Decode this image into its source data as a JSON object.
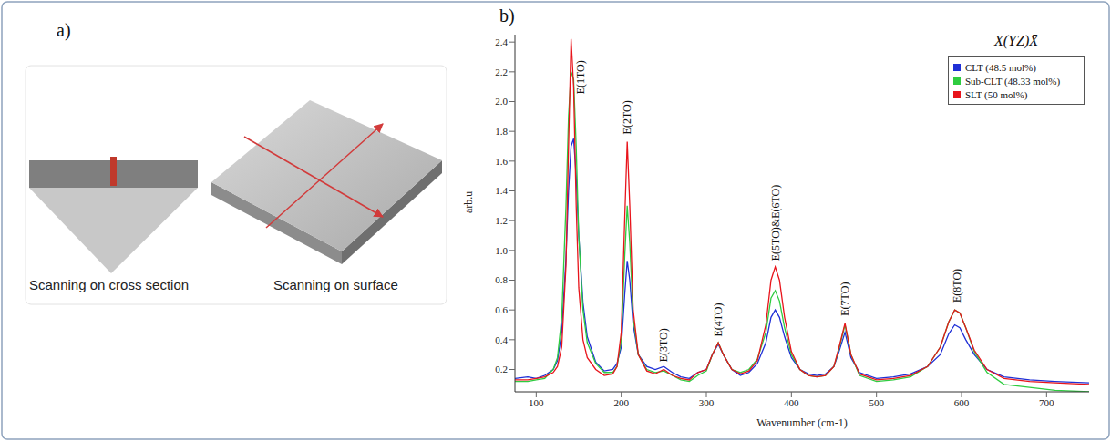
{
  "panel_a": {
    "label": "a)",
    "captions": [
      "Scanning on cross section",
      "Scanning on surface"
    ]
  },
  "panel_b": {
    "label": "b)"
  },
  "chart_data": {
    "type": "line",
    "title": "X(YZ)X̄",
    "x_label": "Wavenumber (cm-1)",
    "y_label": "arb.u",
    "xlim": [
      75,
      750
    ],
    "xticks": [
      100,
      200,
      300,
      400,
      500,
      600,
      700
    ],
    "ylim": [
      0.05,
      2.45
    ],
    "yticks": [
      0.2,
      0.4,
      0.6,
      0.8,
      {
        "value": 1,
        "label": "1.0"
      },
      1.2,
      1.4,
      1.6,
      1.8,
      {
        "value": 2,
        "label": "2.0"
      },
      2.2,
      2.4
    ],
    "grid": false,
    "legend": "top-right",
    "x": [
      75,
      90,
      100,
      110,
      120,
      125,
      130,
      135,
      138,
      141,
      144,
      147,
      150,
      155,
      160,
      170,
      180,
      190,
      195,
      200,
      204,
      207,
      210,
      214,
      220,
      230,
      240,
      250,
      260,
      270,
      280,
      290,
      300,
      307,
      314,
      320,
      330,
      340,
      350,
      360,
      370,
      376,
      381,
      386,
      392,
      400,
      410,
      420,
      430,
      440,
      450,
      456,
      463,
      470,
      480,
      500,
      520,
      540,
      560,
      575,
      585,
      592,
      598,
      605,
      615,
      630,
      650,
      680,
      710,
      750
    ],
    "series": [
      {
        "name": "CLT (48.5 mol%)",
        "color": "#1f2fd6",
        "values": [
          0.14,
          0.15,
          0.14,
          0.16,
          0.2,
          0.26,
          0.45,
          0.95,
          1.4,
          1.7,
          1.75,
          1.5,
          1.1,
          0.65,
          0.42,
          0.25,
          0.19,
          0.2,
          0.24,
          0.35,
          0.7,
          0.93,
          0.8,
          0.5,
          0.3,
          0.22,
          0.2,
          0.22,
          0.18,
          0.15,
          0.14,
          0.18,
          0.2,
          0.3,
          0.37,
          0.3,
          0.2,
          0.16,
          0.18,
          0.24,
          0.38,
          0.55,
          0.6,
          0.55,
          0.42,
          0.28,
          0.2,
          0.17,
          0.16,
          0.17,
          0.22,
          0.32,
          0.45,
          0.28,
          0.18,
          0.14,
          0.15,
          0.17,
          0.22,
          0.3,
          0.44,
          0.5,
          0.48,
          0.4,
          0.3,
          0.2,
          0.15,
          0.13,
          0.12,
          0.11
        ]
      },
      {
        "name": "Sub-CLT (48.33 mol%)",
        "color": "#2ecc40",
        "values": [
          0.12,
          0.12,
          0.13,
          0.14,
          0.2,
          0.28,
          0.55,
          1.3,
          1.9,
          2.2,
          2.15,
          1.7,
          1.1,
          0.6,
          0.38,
          0.24,
          0.18,
          0.18,
          0.22,
          0.4,
          0.95,
          1.3,
          1.05,
          0.55,
          0.3,
          0.2,
          0.18,
          0.19,
          0.16,
          0.13,
          0.12,
          0.16,
          0.19,
          0.3,
          0.38,
          0.3,
          0.2,
          0.18,
          0.2,
          0.27,
          0.45,
          0.68,
          0.73,
          0.66,
          0.48,
          0.3,
          0.2,
          0.16,
          0.15,
          0.16,
          0.22,
          0.34,
          0.5,
          0.3,
          0.16,
          0.12,
          0.13,
          0.15,
          0.22,
          0.35,
          0.52,
          0.6,
          0.58,
          0.48,
          0.32,
          0.18,
          0.1,
          0.08,
          0.06,
          0.05
        ]
      },
      {
        "name": "SLT (50 mol%)",
        "color": "#e8141b",
        "values": [
          0.13,
          0.13,
          0.14,
          0.15,
          0.18,
          0.22,
          0.35,
          0.9,
          1.7,
          2.42,
          2.1,
          1.3,
          0.75,
          0.4,
          0.28,
          0.2,
          0.16,
          0.17,
          0.22,
          0.45,
          1.2,
          1.73,
          1.3,
          0.6,
          0.3,
          0.19,
          0.17,
          0.2,
          0.16,
          0.14,
          0.13,
          0.18,
          0.2,
          0.3,
          0.38,
          0.3,
          0.2,
          0.17,
          0.19,
          0.26,
          0.5,
          0.8,
          0.89,
          0.8,
          0.55,
          0.32,
          0.2,
          0.16,
          0.15,
          0.16,
          0.22,
          0.35,
          0.51,
          0.3,
          0.17,
          0.13,
          0.14,
          0.16,
          0.22,
          0.35,
          0.52,
          0.6,
          0.58,
          0.48,
          0.33,
          0.2,
          0.14,
          0.12,
          0.11,
          0.1
        ]
      }
    ],
    "annotations": [
      {
        "text": "E(1TO)",
        "x": 152,
        "y": 2.05
      },
      {
        "text": "E(2TO)",
        "x": 207,
        "y": 1.78
      },
      {
        "text": "E(3TO)",
        "x": 250,
        "y": 0.25
      },
      {
        "text": "E(4TO)",
        "x": 314,
        "y": 0.42
      },
      {
        "text": "E(5TO)&E(6TO)",
        "x": 381,
        "y": 0.93
      },
      {
        "text": "E(7TO)",
        "x": 463,
        "y": 0.56
      },
      {
        "text": "E(8TO)",
        "x": 595,
        "y": 0.65
      }
    ]
  }
}
